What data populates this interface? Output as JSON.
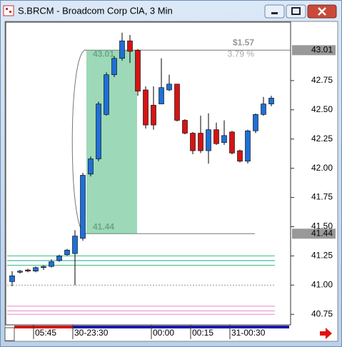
{
  "window": {
    "title": "S.BRCM - Broadcom Corp ClA, 3 Min"
  },
  "chart_data": {
    "type": "candlestick",
    "categories": [
      null,
      null,
      null,
      "05:45",
      null,
      null,
      null,
      null,
      "30-23:30",
      null,
      null,
      null,
      null,
      null,
      null,
      null,
      null,
      null,
      "00:00",
      null,
      null,
      null,
      null,
      "00:15",
      null,
      null,
      null,
      null,
      "31-00:30",
      null,
      null,
      null,
      null,
      null
    ],
    "open": [
      41.03,
      41.11,
      41.13,
      41.12,
      41.15,
      41.16,
      41.21,
      41.26,
      41.27,
      41.4,
      41.95,
      42.08,
      42.46,
      42.8,
      42.94,
      43.09,
      43.01,
      42.67,
      42.54,
      42.55,
      42.67,
      42.72,
      42.41,
      42.3,
      42.3,
      42.15,
      42.33,
      42.22,
      42.31,
      42.15,
      42.06,
      42.32,
      42.46,
      42.55
    ],
    "high": [
      41.12,
      41.13,
      41.14,
      41.16,
      41.17,
      41.22,
      41.26,
      41.31,
      41.47,
      41.96,
      42.1,
      42.57,
      42.82,
      42.96,
      43.16,
      43.14,
      43.02,
      42.7,
      42.7,
      42.94,
      42.8,
      42.72,
      42.42,
      42.31,
      42.45,
      42.47,
      42.39,
      42.41,
      42.32,
      42.16,
      42.33,
      42.47,
      42.61,
      42.62
    ],
    "low": [
      40.99,
      41.1,
      41.11,
      41.11,
      41.13,
      41.15,
      41.2,
      41.25,
      41.0,
      41.38,
      41.93,
      42.06,
      42.45,
      42.78,
      42.92,
      42.9,
      42.62,
      42.34,
      42.33,
      42.55,
      42.66,
      42.4,
      42.29,
      42.12,
      42.13,
      42.04,
      42.2,
      42.2,
      42.12,
      42.05,
      42.04,
      42.3,
      42.45,
      42.53
    ],
    "close": [
      41.08,
      41.12,
      41.12,
      41.15,
      41.16,
      41.2,
      41.25,
      41.3,
      41.42,
      41.94,
      42.08,
      42.55,
      42.8,
      42.94,
      43.09,
      43.0,
      42.66,
      42.37,
      42.37,
      42.69,
      42.72,
      42.41,
      42.3,
      42.15,
      42.15,
      42.33,
      42.21,
      42.28,
      42.13,
      42.06,
      42.32,
      42.46,
      42.55,
      42.6
    ],
    "up_color": "#1f6fd6",
    "down_color": "#d41414",
    "ylim": [
      40.66,
      43.25
    ],
    "yticks": [
      40.75,
      {
        "value": 41,
        "label": "41.00"
      },
      41.25,
      {
        "value": 41.5,
        "label": "41.50"
      },
      41.75,
      {
        "value": 42,
        "label": "42.00"
      },
      42.25,
      {
        "value": 42.5,
        "label": "42.50"
      },
      42.75
    ],
    "measure": {
      "high": 43.01,
      "low": 41.44,
      "change": "$1.57",
      "percent": "3.79 %"
    },
    "reference_lines": [
      {
        "value": 41.25,
        "color": "#3cbf7a"
      },
      {
        "value": 41.21,
        "color": "#1aa0a0"
      },
      {
        "value": 41.17,
        "color": "#3cbf7a"
      },
      {
        "value": 41.0,
        "color": "#999999"
      },
      {
        "value": 40.82,
        "color": "#e68ac8"
      },
      {
        "value": 40.78,
        "color": "#e68ac8"
      },
      {
        "value": 40.75,
        "color": "#e68ac8"
      }
    ]
  }
}
